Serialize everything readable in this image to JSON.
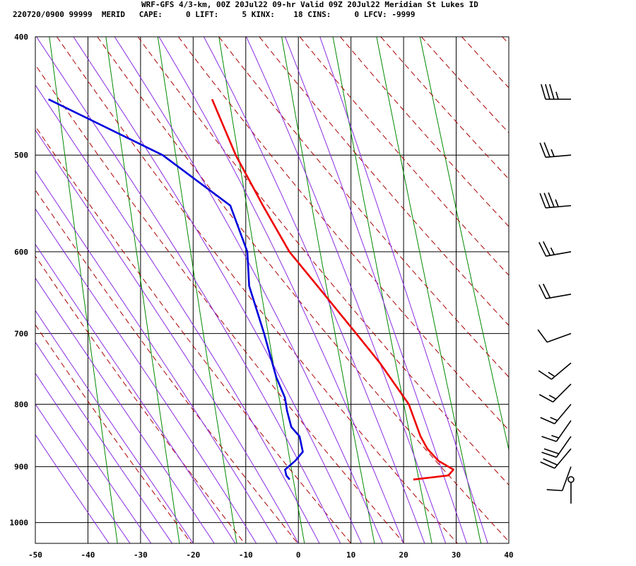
{
  "header": {
    "line1": "WRF-GFS 4/3-km, 00Z 20Jul22 09-hr Valid 09Z 20Jul22 Meridian St Lukes ID",
    "line2": "220720/0900 99999  MERID   CAPE:     0 LIFT:     5 KINX:    18 CINS:     0 LFCV: -9999"
  },
  "colors": {
    "temperature": "#ee0000",
    "dewpoint": "#0000dd",
    "dry_adiabat": "#aa0000",
    "moist_adiabat": "#8a2be2",
    "mixing_ratio": "#008800",
    "grid": "#000000"
  },
  "chart_data": {
    "type": "line",
    "title": "",
    "xlabel": "",
    "ylabel": "",
    "xlim": [
      -50,
      40
    ],
    "ylim": [
      400,
      1040
    ],
    "y_log_scale": true,
    "grid": true,
    "x_ticks": [
      "-50",
      "-40",
      "-30",
      "-20",
      "-10",
      "0",
      "10",
      "20",
      "30",
      "40"
    ],
    "y_ticks": [
      "400",
      "500",
      "600",
      "700",
      "800",
      "900",
      "1000"
    ],
    "series": [
      {
        "key": "temperature",
        "points": [
          [
            922,
            22.3
          ],
          [
            915,
            29.0
          ],
          [
            905,
            30.0
          ],
          [
            890,
            27.2
          ],
          [
            870,
            25.2
          ],
          [
            850,
            24.0
          ],
          [
            800,
            22.0
          ],
          [
            740,
            16.8
          ],
          [
            700,
            12.5
          ],
          [
            650,
            6.7
          ],
          [
            600,
            0.4
          ],
          [
            550,
            -4.3
          ],
          [
            500,
            -9.1
          ],
          [
            450,
            -13.2
          ]
        ]
      },
      {
        "key": "dewpoint",
        "points": [
          [
            922,
            -1.2
          ],
          [
            915,
            -1.8
          ],
          [
            905,
            -2.0
          ],
          [
            890,
            0.0
          ],
          [
            875,
            1.5
          ],
          [
            850,
            1.0
          ],
          [
            835,
            -0.5
          ],
          [
            810,
            -1.2
          ],
          [
            790,
            -1.5
          ],
          [
            760,
            -3.0
          ],
          [
            700,
            -5.0
          ],
          [
            640,
            -7.5
          ],
          [
            600,
            -7.6
          ],
          [
            550,
            -10.5
          ],
          [
            500,
            -23.0
          ],
          [
            450,
            -44.3
          ]
        ]
      }
    ],
    "wind_barbs": [
      {
        "p": 450,
        "dir": 270,
        "speed": 35
      },
      {
        "p": 500,
        "dir": 265,
        "speed": 25
      },
      {
        "p": 550,
        "dir": 265,
        "speed": 35
      },
      {
        "p": 600,
        "dir": 260,
        "speed": 25
      },
      {
        "p": 650,
        "dir": 260,
        "speed": 20
      },
      {
        "p": 700,
        "dir": 250,
        "speed": 10
      },
      {
        "p": 740,
        "dir": 230,
        "speed": 15
      },
      {
        "p": 770,
        "dir": 225,
        "speed": 15
      },
      {
        "p": 800,
        "dir": 220,
        "speed": 15
      },
      {
        "p": 825,
        "dir": 215,
        "speed": 15
      },
      {
        "p": 850,
        "dir": 215,
        "speed": 20
      },
      {
        "p": 870,
        "dir": 220,
        "speed": 20
      },
      {
        "p": 900,
        "dir": 200,
        "speed": 10
      },
      {
        "p": 922,
        "dir": 0,
        "speed": 0
      }
    ]
  }
}
